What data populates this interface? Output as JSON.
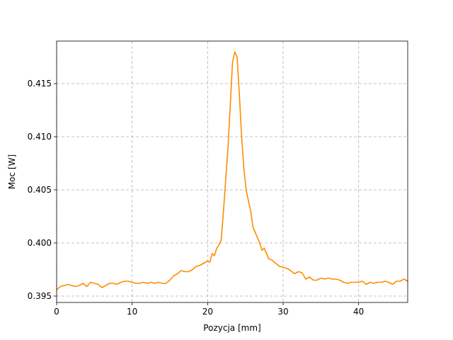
{
  "chart_data": {
    "type": "line",
    "title": "",
    "xlabel": "Pozycja [mm]",
    "ylabel": "Moc [W]",
    "xlim": [
      0,
      46.5
    ],
    "ylim": [
      0.3944,
      0.419
    ],
    "xticks": [
      0,
      10,
      20,
      30,
      40
    ],
    "xtick_labels": [
      "0",
      "10",
      "20",
      "30",
      "40"
    ],
    "yticks": [
      0.395,
      0.4,
      0.405,
      0.41,
      0.415
    ],
    "ytick_labels": [
      "0.395",
      "0.400",
      "0.405",
      "0.410",
      "0.415"
    ],
    "grid": true,
    "series": [
      {
        "color": "#ff8c00",
        "x": [
          0,
          0.5,
          1,
          1.5,
          2,
          2.5,
          3,
          3.5,
          4,
          4.5,
          5,
          5.5,
          6,
          6.5,
          7,
          7.5,
          8,
          8.5,
          9,
          9.5,
          10,
          10.5,
          11,
          11.5,
          12,
          12.5,
          13,
          13.5,
          14,
          14.5,
          15,
          15.5,
          16,
          16.5,
          17,
          17.5,
          18,
          18.5,
          19,
          19.5,
          20,
          20.3,
          20.6,
          20.9,
          21.2,
          21.5,
          21.8,
          22.1,
          22.4,
          22.7,
          23.0,
          23.3,
          23.6,
          23.9,
          24.2,
          24.5,
          24.8,
          25.1,
          25.4,
          25.7,
          26.0,
          26.3,
          26.6,
          26.9,
          27.2,
          27.5,
          27.8,
          28.1,
          28.5,
          29,
          29.5,
          30,
          30.5,
          31,
          31.5,
          32,
          32.5,
          33,
          33.5,
          34,
          34.5,
          35,
          35.5,
          36,
          36.5,
          37,
          37.5,
          38,
          38.5,
          39,
          39.5,
          40,
          40.5,
          41,
          41.5,
          42,
          42.5,
          43,
          43.5,
          44,
          44.5,
          45,
          45.5,
          46,
          46.5
        ],
        "y": [
          0.3956,
          0.3959,
          0.396,
          0.3961,
          0.396,
          0.3959,
          0.396,
          0.3962,
          0.3959,
          0.3963,
          0.3962,
          0.3961,
          0.3958,
          0.396,
          0.3962,
          0.3962,
          0.3961,
          0.3963,
          0.3964,
          0.3964,
          0.3963,
          0.3962,
          0.3962,
          0.3963,
          0.3962,
          0.3963,
          0.3962,
          0.3963,
          0.3962,
          0.3962,
          0.3965,
          0.3969,
          0.3971,
          0.3974,
          0.3973,
          0.3973,
          0.3975,
          0.3978,
          0.3979,
          0.3981,
          0.3983,
          0.3982,
          0.399,
          0.3988,
          0.3995,
          0.3998,
          0.4003,
          0.403,
          0.406,
          0.409,
          0.413,
          0.417,
          0.418,
          0.4175,
          0.414,
          0.41,
          0.407,
          0.405,
          0.404,
          0.403,
          0.4015,
          0.401,
          0.4005,
          0.4,
          0.3993,
          0.3995,
          0.399,
          0.3985,
          0.3984,
          0.3981,
          0.3978,
          0.3977,
          0.3976,
          0.3974,
          0.3971,
          0.3973,
          0.3972,
          0.3966,
          0.3968,
          0.3965,
          0.3965,
          0.3967,
          0.3966,
          0.3967,
          0.3966,
          0.3966,
          0.3965,
          0.3963,
          0.3962,
          0.3963,
          0.3963,
          0.3963,
          0.3964,
          0.3961,
          0.3963,
          0.3962,
          0.3963,
          0.3963,
          0.3964,
          0.3963,
          0.3961,
          0.3964,
          0.3964,
          0.3966,
          0.3964
        ]
      }
    ]
  }
}
